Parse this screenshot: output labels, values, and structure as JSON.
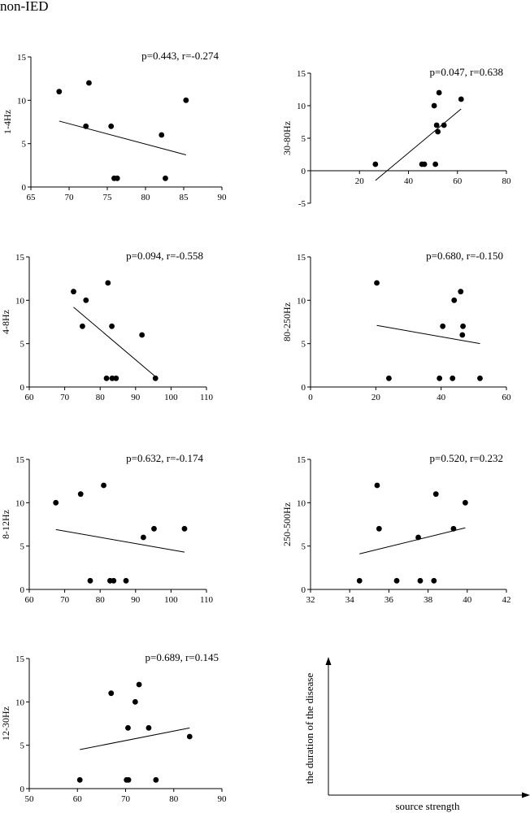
{
  "figure": {
    "heading": "non-IED"
  },
  "legend_panel": {
    "xlabel": "source strength",
    "ylabel": "the duration of the disease"
  },
  "chart_data": [
    {
      "type": "scatter",
      "id": "p1",
      "ylabel": "1-4Hz",
      "stat": "p=0.443, r=-0.274",
      "xlim": [
        65,
        90
      ],
      "xticks": [
        65,
        70,
        75,
        80,
        85,
        90
      ],
      "ylim": [
        0,
        15
      ],
      "yticks": [
        0,
        5,
        10,
        15
      ],
      "points": [
        [
          68.7,
          11
        ],
        [
          72.2,
          7
        ],
        [
          72.6,
          12
        ],
        [
          75.5,
          7
        ],
        [
          75.9,
          1
        ],
        [
          76.3,
          1
        ],
        [
          82.1,
          6
        ],
        [
          82.6,
          1
        ],
        [
          85.3,
          10
        ]
      ],
      "fit": [
        [
          68.7,
          7.6
        ],
        [
          85.3,
          3.7
        ]
      ]
    },
    {
      "type": "scatter",
      "id": "p2",
      "ylabel": "30-80Hz",
      "stat": "p=0.047, r=0.638",
      "xlim": [
        0,
        80
      ],
      "xticks": [
        20,
        40,
        60,
        80
      ],
      "ylim": [
        -5,
        15
      ],
      "yticks": [
        -5,
        0,
        5,
        10,
        15
      ],
      "points": [
        [
          26.5,
          1
        ],
        [
          45.5,
          1
        ],
        [
          46.5,
          1
        ],
        [
          50.5,
          10
        ],
        [
          51,
          1
        ],
        [
          51.5,
          7
        ],
        [
          52,
          6
        ],
        [
          52.5,
          12
        ],
        [
          54.5,
          7
        ],
        [
          61.5,
          11
        ]
      ],
      "fit": [
        [
          26.5,
          -1.5
        ],
        [
          61.5,
          9.5
        ]
      ]
    },
    {
      "type": "scatter",
      "id": "p3",
      "ylabel": "4-8Hz",
      "stat": "p=0.094, r=-0.558",
      "xlim": [
        60,
        110
      ],
      "xticks": [
        60,
        70,
        80,
        90,
        100,
        110
      ],
      "ylim": [
        0,
        15
      ],
      "yticks": [
        0,
        5,
        10,
        15
      ],
      "points": [
        [
          72.5,
          11
        ],
        [
          75,
          7
        ],
        [
          76,
          10
        ],
        [
          81.8,
          1
        ],
        [
          82.2,
          12
        ],
        [
          83.3,
          7
        ],
        [
          83.4,
          1
        ],
        [
          84.5,
          1
        ],
        [
          91.8,
          6
        ],
        [
          95.6,
          1
        ]
      ],
      "fit": [
        [
          72.5,
          9.2
        ],
        [
          95.6,
          1.2
        ]
      ]
    },
    {
      "type": "scatter",
      "id": "p4",
      "ylabel": "80-250Hz",
      "stat": "p=0.680, r=-0.150",
      "xlim": [
        0,
        60
      ],
      "xticks": [
        0,
        20,
        40,
        60
      ],
      "ylim": [
        0,
        15
      ],
      "yticks": [
        0,
        5,
        10,
        15
      ],
      "points": [
        [
          20.3,
          12
        ],
        [
          24,
          1
        ],
        [
          39.5,
          1
        ],
        [
          40.5,
          7
        ],
        [
          43.5,
          1
        ],
        [
          44,
          10
        ],
        [
          46,
          11
        ],
        [
          46.5,
          6
        ],
        [
          46.7,
          7
        ],
        [
          51.9,
          1
        ]
      ],
      "fit": [
        [
          20.3,
          7.1
        ],
        [
          51.9,
          5.0
        ]
      ]
    },
    {
      "type": "scatter",
      "id": "p5",
      "ylabel": "8-12Hz",
      "stat": "p=0.632, r=-0.174",
      "xlim": [
        60,
        110
      ],
      "xticks": [
        60,
        70,
        80,
        90,
        100,
        110
      ],
      "ylim": [
        0,
        15
      ],
      "yticks": [
        0,
        5,
        10,
        15
      ],
      "points": [
        [
          67.5,
          10
        ],
        [
          74.5,
          11
        ],
        [
          77.2,
          1
        ],
        [
          81,
          12
        ],
        [
          82.8,
          1
        ],
        [
          83.8,
          1
        ],
        [
          87.3,
          1
        ],
        [
          92.2,
          6
        ],
        [
          95.2,
          7
        ],
        [
          103.8,
          7
        ]
      ],
      "fit": [
        [
          67.5,
          6.9
        ],
        [
          103.8,
          4.3
        ]
      ]
    },
    {
      "type": "scatter",
      "id": "p6",
      "ylabel": "250-500Hz",
      "stat": "p=0.520, r=0.232",
      "xlim": [
        32,
        42
      ],
      "xticks": [
        32,
        34,
        36,
        38,
        40,
        42
      ],
      "ylim": [
        0,
        15
      ],
      "yticks": [
        0,
        5,
        10,
        15
      ],
      "points": [
        [
          34.5,
          1
        ],
        [
          35.4,
          12
        ],
        [
          35.5,
          7
        ],
        [
          36.4,
          1
        ],
        [
          37.5,
          6
        ],
        [
          37.6,
          1
        ],
        [
          38.3,
          1
        ],
        [
          38.4,
          11
        ],
        [
          39.3,
          7
        ],
        [
          39.9,
          10
        ]
      ],
      "fit": [
        [
          34.5,
          4.1
        ],
        [
          39.9,
          7.1
        ]
      ]
    },
    {
      "type": "scatter",
      "id": "p7",
      "ylabel": "12-30Hz",
      "stat": "p=0.689, r=0.145",
      "xlim": [
        50,
        90
      ],
      "xticks": [
        50,
        60,
        70,
        80,
        90
      ],
      "ylim": [
        0,
        15
      ],
      "yticks": [
        0,
        5,
        10,
        15
      ],
      "points": [
        [
          60.5,
          1
        ],
        [
          67,
          11
        ],
        [
          70.2,
          1
        ],
        [
          70.5,
          7
        ],
        [
          70.6,
          1
        ],
        [
          72,
          10
        ],
        [
          72.8,
          12
        ],
        [
          74.8,
          7
        ],
        [
          76.3,
          1
        ],
        [
          83.3,
          6
        ]
      ],
      "fit": [
        [
          60.5,
          4.5
        ],
        [
          83.3,
          7.0
        ]
      ]
    }
  ]
}
